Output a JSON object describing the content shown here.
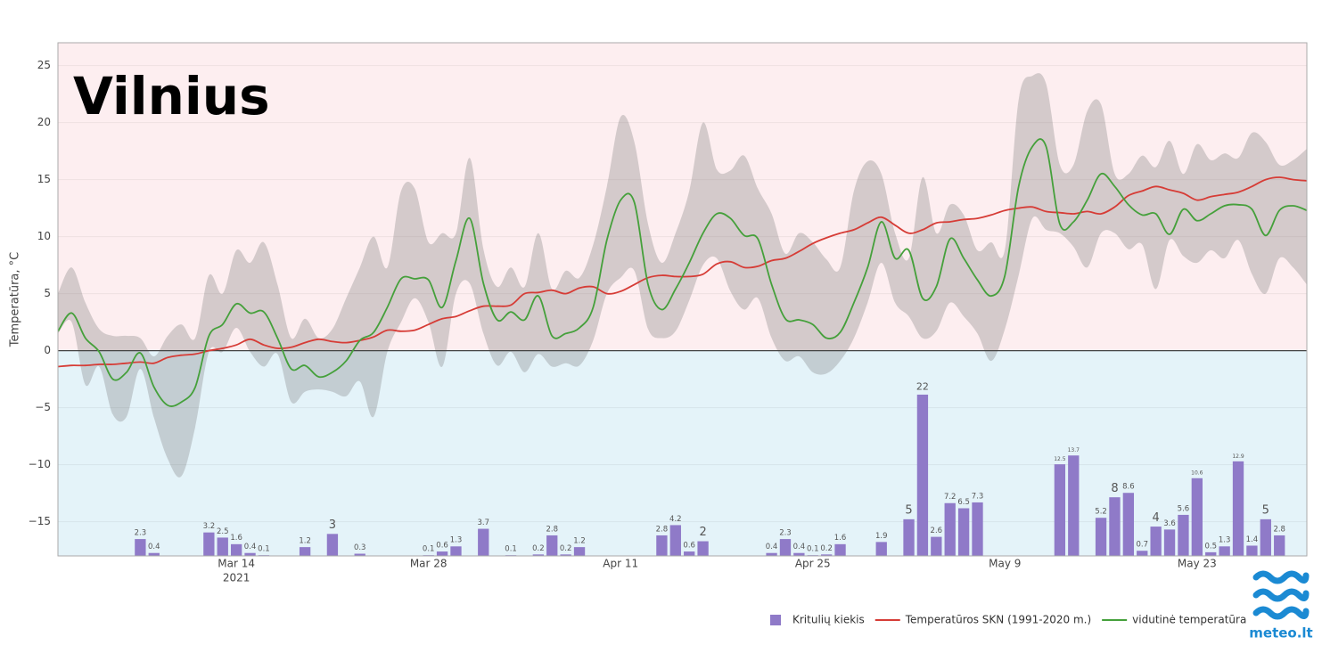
{
  "chart_data": {
    "type": "line",
    "title": "Vilnius",
    "y_label": "Temperatūra, °C",
    "source_logo": "meteo.lt",
    "legend": "bottom-right",
    "grid": true,
    "above_zero_color": "#fdeef0",
    "below_zero_color": "#e4f3f9",
    "xlim": [
      "2021-03-01",
      "2021-05-31"
    ],
    "xticks": [
      {
        "value": "2021-03-14",
        "label": "Mar 14",
        "sublabel": "2021"
      },
      {
        "value": "2021-03-28",
        "label": "Mar 28"
      },
      {
        "value": "2021-04-11",
        "label": "Apr 11"
      },
      {
        "value": "2021-04-25",
        "label": "Apr 25"
      },
      {
        "value": "2021-05-09",
        "label": "May 9"
      },
      {
        "value": "2021-05-23",
        "label": "May 23"
      }
    ],
    "ylim": [
      -18,
      27
    ],
    "yticks": [
      {
        "value": -15,
        "label": "−15"
      },
      {
        "value": -10,
        "label": "−10"
      },
      {
        "value": -5,
        "label": "−5"
      },
      0,
      5,
      10,
      15,
      20,
      25
    ],
    "y2lim": [
      0,
      70
    ],
    "x": [
      "2021-03-01",
      "2021-03-02",
      "2021-03-03",
      "2021-03-04",
      "2021-03-05",
      "2021-03-06",
      "2021-03-07",
      "2021-03-08",
      "2021-03-09",
      "2021-03-10",
      "2021-03-11",
      "2021-03-12",
      "2021-03-13",
      "2021-03-14",
      "2021-03-15",
      "2021-03-16",
      "2021-03-17",
      "2021-03-18",
      "2021-03-19",
      "2021-03-20",
      "2021-03-21",
      "2021-03-22",
      "2021-03-23",
      "2021-03-24",
      "2021-03-25",
      "2021-03-26",
      "2021-03-27",
      "2021-03-28",
      "2021-03-29",
      "2021-03-30",
      "2021-03-31",
      "2021-04-01",
      "2021-04-02",
      "2021-04-03",
      "2021-04-04",
      "2021-04-05",
      "2021-04-06",
      "2021-04-07",
      "2021-04-08",
      "2021-04-09",
      "2021-04-10",
      "2021-04-11",
      "2021-04-12",
      "2021-04-13",
      "2021-04-14",
      "2021-04-15",
      "2021-04-16",
      "2021-04-17",
      "2021-04-18",
      "2021-04-19",
      "2021-04-20",
      "2021-04-21",
      "2021-04-22",
      "2021-04-23",
      "2021-04-24",
      "2021-04-25",
      "2021-04-26",
      "2021-04-27",
      "2021-04-28",
      "2021-04-29",
      "2021-04-30",
      "2021-05-01",
      "2021-05-02",
      "2021-05-03",
      "2021-05-04",
      "2021-05-05",
      "2021-05-06",
      "2021-05-07",
      "2021-05-08",
      "2021-05-09",
      "2021-05-10",
      "2021-05-11",
      "2021-05-12",
      "2021-05-13",
      "2021-05-14",
      "2021-05-15",
      "2021-05-16",
      "2021-05-17",
      "2021-05-18",
      "2021-05-19",
      "2021-05-20",
      "2021-05-21",
      "2021-05-22",
      "2021-05-23",
      "2021-05-24",
      "2021-05-25",
      "2021-05-26",
      "2021-05-27",
      "2021-05-28",
      "2021-05-29",
      "2021-05-30",
      "2021-05-31"
    ],
    "band": {
      "color": "rgba(120,120,120,0.3)",
      "high": [
        5.0,
        7.3,
        4.2,
        1.9,
        1.3,
        1.3,
        1.1,
        -0.5,
        1.3,
        2.3,
        1.1,
        6.6,
        5.0,
        8.8,
        7.7,
        9.5,
        5.8,
        1.1,
        2.8,
        1.1,
        1.9,
        4.6,
        7.3,
        10.0,
        7.3,
        14.0,
        14.2,
        9.5,
        10.3,
        10.3,
        16.9,
        8.9,
        5.6,
        7.3,
        5.6,
        10.3,
        5.4,
        7.0,
        6.4,
        9.3,
        14.4,
        20.5,
        18.3,
        11.1,
        7.7,
        10.3,
        14.0,
        20.0,
        15.9,
        15.8,
        17.1,
        14.2,
        12.0,
        8.5,
        10.3,
        9.5,
        8.0,
        7.3,
        14.0,
        16.6,
        15.5,
        10.3,
        8.1,
        15.2,
        10.3,
        12.8,
        11.9,
        8.8,
        9.5,
        8.9,
        22.0,
        24.1,
        23.4,
        16.3,
        16.3,
        21.0,
        21.6,
        15.5,
        15.5,
        17.1,
        16.1,
        18.4,
        15.5,
        18.1,
        16.7,
        17.3,
        16.9,
        19.1,
        18.3,
        16.3,
        16.7,
        17.7
      ],
      "low": [
        1.5,
        2.5,
        -3.0,
        -1.4,
        -5.6,
        -5.8,
        -1.6,
        -5.9,
        -9.5,
        -11.0,
        -6.7,
        -0.1,
        -0.1,
        2.0,
        -0.1,
        -1.4,
        -0.3,
        -4.5,
        -3.6,
        -3.4,
        -3.6,
        -4.0,
        -2.7,
        -5.8,
        -0.1,
        2.5,
        4.6,
        2.5,
        -1.4,
        5.0,
        5.9,
        1.5,
        -1.3,
        -0.1,
        -1.9,
        -0.3,
        -1.4,
        -1.1,
        -1.3,
        0.9,
        5.0,
        6.4,
        7.0,
        1.9,
        1.1,
        1.7,
        4.4,
        7.5,
        8.1,
        5.2,
        3.6,
        4.6,
        1.1,
        -0.9,
        -0.5,
        -1.9,
        -2.0,
        -0.9,
        1.1,
        4.2,
        7.7,
        4.2,
        3.0,
        1.1,
        1.7,
        4.2,
        3.0,
        1.5,
        -0.9,
        1.9,
        6.6,
        11.6,
        10.6,
        10.3,
        9.1,
        7.3,
        10.3,
        10.3,
        8.9,
        9.3,
        5.4,
        9.7,
        8.3,
        7.7,
        8.8,
        8.1,
        9.7,
        6.7,
        5.0,
        8.1,
        7.3,
        5.8
      ]
    },
    "series": [
      {
        "name": "Kritulių kiekis",
        "type": "bar",
        "axis": "y2",
        "color": "#8f7ac8",
        "x": [
          "2021-03-07",
          "2021-03-08",
          "2021-03-12",
          "2021-03-13",
          "2021-03-14",
          "2021-03-15",
          "2021-03-16",
          "2021-03-19",
          "2021-03-21",
          "2021-03-23",
          "2021-03-28",
          "2021-03-29",
          "2021-03-30",
          "2021-04-01",
          "2021-04-03",
          "2021-04-05",
          "2021-04-06",
          "2021-04-07",
          "2021-04-08",
          "2021-04-14",
          "2021-04-15",
          "2021-04-16",
          "2021-04-17",
          "2021-04-22",
          "2021-04-23",
          "2021-04-24",
          "2021-04-25",
          "2021-04-26",
          "2021-04-27",
          "2021-04-30",
          "2021-05-02",
          "2021-05-03",
          "2021-05-04",
          "2021-05-05",
          "2021-05-06",
          "2021-05-07",
          "2021-05-13",
          "2021-05-14",
          "2021-05-16",
          "2021-05-17",
          "2021-05-18",
          "2021-05-19",
          "2021-05-20",
          "2021-05-21",
          "2021-05-22",
          "2021-05-23",
          "2021-05-24",
          "2021-05-25",
          "2021-05-26",
          "2021-05-27",
          "2021-05-28",
          "2021-05-29"
        ],
        "values": [
          2.3,
          0.4,
          3.2,
          2.5,
          1.6,
          0.4,
          0.1,
          1.2,
          3,
          0.3,
          0.1,
          0.6,
          1.3,
          3.7,
          0.1,
          0.2,
          2.8,
          0.2,
          1.2,
          2.8,
          4.2,
          0.6,
          2,
          0.4,
          2.3,
          0.4,
          0.1,
          0.2,
          1.6,
          1.9,
          5,
          22,
          2.6,
          7.2,
          6.5,
          7.3,
          12.5,
          13.7,
          5.2,
          8,
          8.6,
          0.7,
          4,
          3.6,
          5.6,
          10.6,
          0.5,
          1.3,
          12.9,
          1.4,
          5,
          2.8
        ]
      },
      {
        "name": "Temperatūros SKN (1991-2020 m.)",
        "type": "line",
        "color": "#d63c36",
        "values": [
          -1.4,
          -1.3,
          -1.3,
          -1.2,
          -1.2,
          -1.1,
          -1.0,
          -1.1,
          -0.6,
          -0.4,
          -0.3,
          0,
          0.2,
          0.5,
          1.0,
          0.5,
          0.2,
          0.3,
          0.7,
          1.0,
          0.8,
          0.7,
          0.9,
          1.2,
          1.8,
          1.7,
          1.8,
          2.3,
          2.8,
          3.0,
          3.5,
          3.9,
          3.9,
          4.0,
          5.0,
          5.1,
          5.3,
          5.0,
          5.5,
          5.6,
          5.0,
          5.2,
          5.8,
          6.4,
          6.6,
          6.5,
          6.5,
          6.7,
          7.6,
          7.8,
          7.3,
          7.4,
          7.9,
          8.1,
          8.7,
          9.4,
          9.9,
          10.3,
          10.6,
          11.2,
          11.7,
          11.0,
          10.3,
          10.6,
          11.2,
          11.3,
          11.5,
          11.6,
          11.9,
          12.3,
          12.5,
          12.6,
          12.2,
          12.1,
          12.0,
          12.2,
          12.0,
          12.6,
          13.6,
          14.0,
          14.4,
          14.1,
          13.8,
          13.2,
          13.5,
          13.7,
          13.9,
          14.4,
          15.0,
          15.2,
          15.0,
          14.9
        ]
      },
      {
        "name": "vidutinė temperatūra",
        "type": "line",
        "color": "#45a03b",
        "values": [
          1.7,
          3.3,
          1.1,
          -0.1,
          -2.5,
          -1.9,
          -0.2,
          -3.2,
          -4.8,
          -4.5,
          -3.2,
          1.3,
          2.3,
          4.1,
          3.3,
          3.4,
          1.1,
          -1.6,
          -1.3,
          -2.3,
          -1.9,
          -0.9,
          0.9,
          1.6,
          3.8,
          6.3,
          6.3,
          6.2,
          3.8,
          7.9,
          11.6,
          5.9,
          2.7,
          3.4,
          2.7,
          4.8,
          1.3,
          1.5,
          2.0,
          3.8,
          9.7,
          13.2,
          13.0,
          5.8,
          3.6,
          5.4,
          7.7,
          10.3,
          12.0,
          11.6,
          10.1,
          9.8,
          5.8,
          2.8,
          2.7,
          2.3,
          1.1,
          1.6,
          4.2,
          7.3,
          11.3,
          8.1,
          8.8,
          4.6,
          5.6,
          9.8,
          8.1,
          6.2,
          4.8,
          6.6,
          14.4,
          17.9,
          17.9,
          11.1,
          11.3,
          13.2,
          15.5,
          14.4,
          12.8,
          11.9,
          12.0,
          10.2,
          12.4,
          11.4,
          12.0,
          12.7,
          12.8,
          12.4,
          10.1,
          12.3,
          12.7,
          12.3
        ]
      }
    ]
  }
}
